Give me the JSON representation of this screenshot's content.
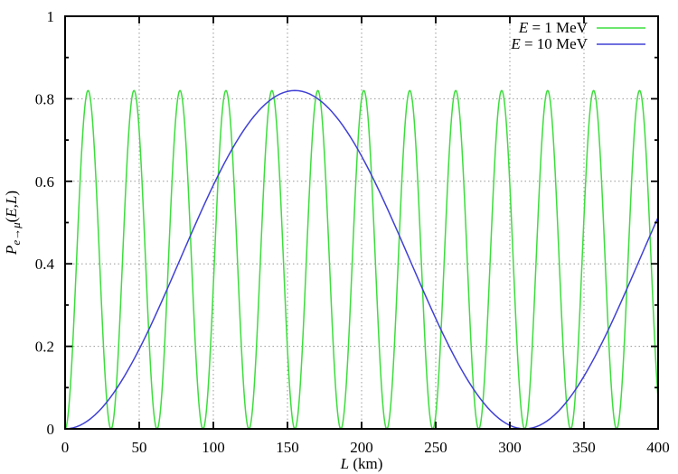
{
  "chart_data": {
    "type": "line",
    "title": "",
    "xlabel": "L (km)",
    "ylabel": "P_e→μ(E,L)",
    "xlabel_parts": {
      "var": "L",
      "rest": " (km)"
    },
    "ylabel_parts": {
      "p": "P",
      "sub": "e→μ",
      "open": "(",
      "e": "E",
      "comma": ",",
      "l": "L",
      "close": ")"
    },
    "xlim": [
      0,
      400
    ],
    "ylim": [
      0,
      1
    ],
    "xticks": [
      0,
      50,
      100,
      150,
      200,
      250,
      300,
      350,
      400
    ],
    "xtick_labels": [
      "0",
      "50",
      "100",
      "150",
      "200",
      "250",
      "300",
      "350",
      "400"
    ],
    "yticks": [
      0,
      0.2,
      0.4,
      0.6,
      0.8,
      1
    ],
    "ytick_labels": [
      "0",
      "0.2",
      "0.4",
      "0.6",
      "0.8",
      "1"
    ],
    "y_minor_step": 0.1,
    "grid": true,
    "grid_style": "dotted",
    "legend_position": "top-right",
    "series": [
      {
        "label": "E = 1 MeV",
        "label_var": "E",
        "label_rest": " = 1 MeV",
        "color": "#3ddd3d",
        "amplitude": 0.82,
        "oscillation_length_km": 31,
        "formula": "P = 0.82 * sin^2(pi * L / 31)"
      },
      {
        "label": "E = 10 MeV",
        "label_var": "E",
        "label_rest": " = 10 MeV",
        "color": "#4040d5",
        "amplitude": 0.82,
        "oscillation_length_km": 310,
        "formula": "P = 0.82 * sin^2(pi * L / 310)"
      }
    ],
    "colors": {
      "grid": "#999999",
      "axis": "#000000",
      "background": "#ffffff"
    }
  }
}
